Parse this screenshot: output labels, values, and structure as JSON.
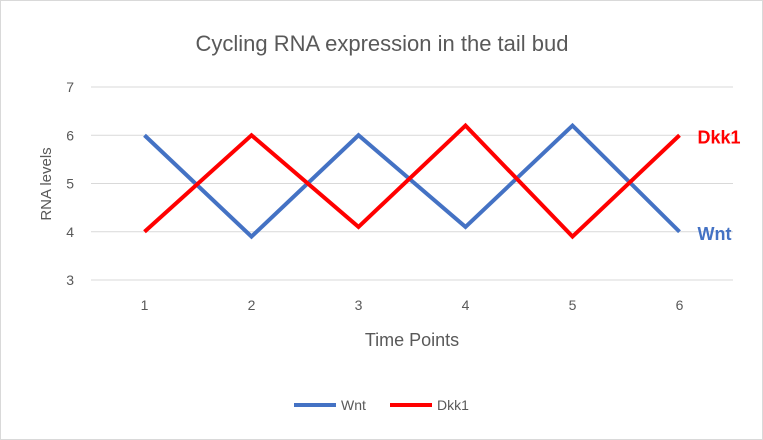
{
  "chart_data": {
    "type": "line",
    "title": "Cycling RNA expression in the tail bud",
    "xlabel": "Time Points",
    "ylabel": "RNA levels",
    "categories": [
      "1",
      "2",
      "3",
      "4",
      "5",
      "6"
    ],
    "ylim": [
      3,
      7
    ],
    "yticks": [
      "3",
      "4",
      "5",
      "6",
      "7"
    ],
    "grid": true,
    "legend": "bottom",
    "series": [
      {
        "name": "Wnt",
        "color": "#4472c4",
        "values": [
          6.0,
          3.9,
          6.0,
          4.1,
          6.2,
          4.0
        ],
        "end_label": "Wnt"
      },
      {
        "name": "Dkk1",
        "color": "#ff0000",
        "values": [
          4.0,
          6.0,
          4.1,
          6.2,
          3.9,
          6.0
        ],
        "end_label": "Dkk1"
      }
    ]
  }
}
